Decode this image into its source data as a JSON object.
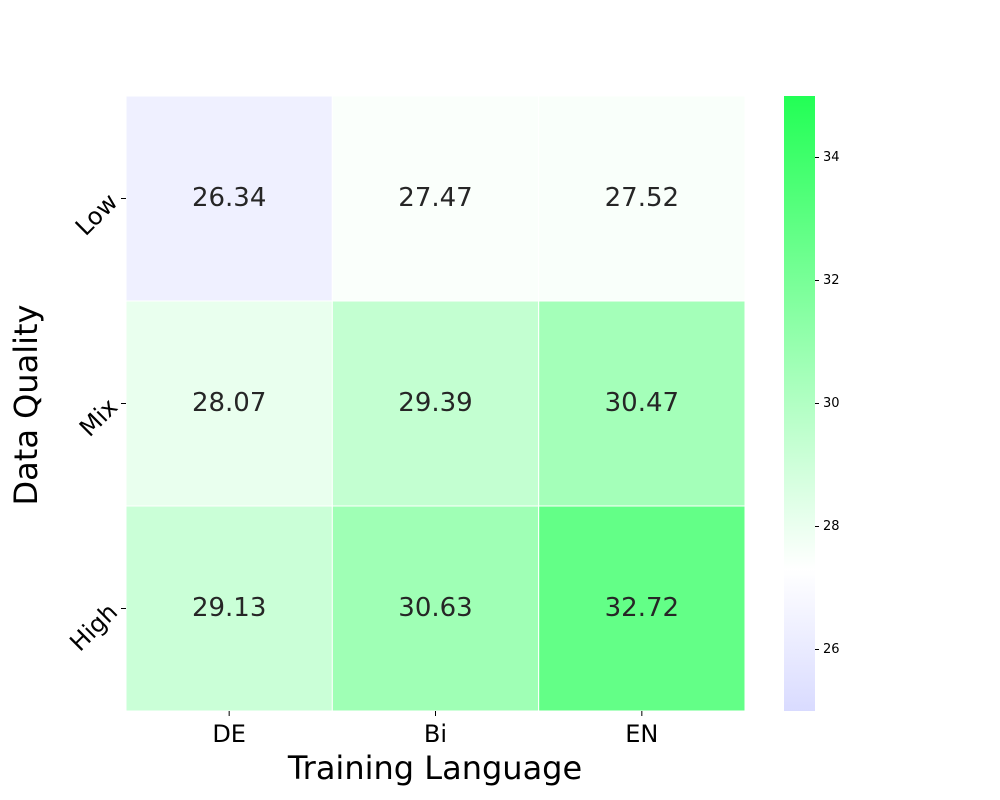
{
  "chart_data": {
    "type": "heatmap",
    "x_label": "Training Language",
    "y_label": "Data Quality",
    "x_categories": [
      "DE",
      "Bi",
      "EN"
    ],
    "y_categories": [
      "Low",
      "Mix",
      "High"
    ],
    "values": [
      [
        26.34,
        27.47,
        27.52
      ],
      [
        28.07,
        29.39,
        30.47
      ],
      [
        29.13,
        30.63,
        32.72
      ]
    ],
    "colormap": [
      {
        "value": 25,
        "color": "#d9dbff"
      },
      {
        "value": 27.3,
        "color": "#ffffff"
      },
      {
        "value": 35,
        "color": "#22ff55"
      }
    ],
    "clim": [
      25,
      35
    ],
    "cticks": [
      26,
      28,
      30,
      32,
      34
    ]
  }
}
